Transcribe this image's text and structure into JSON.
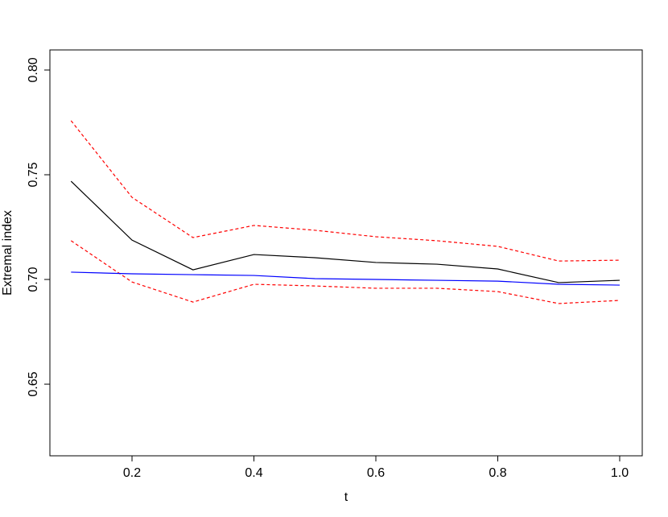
{
  "chart_data": {
    "type": "line",
    "x_label": "t",
    "y_label": "Extremal index",
    "x": [
      0.1,
      0.2,
      0.3,
      0.4,
      0.5,
      0.6,
      0.7,
      0.8,
      0.9,
      1.0
    ],
    "series": [
      {
        "color": "#000000",
        "dash": false,
        "values": [
          0.7469,
          0.7188,
          0.7046,
          0.7119,
          0.7104,
          0.7081,
          0.7073,
          0.705,
          0.6985,
          0.6996
        ]
      },
      {
        "color": "#ff0000",
        "dash": true,
        "values": [
          0.7758,
          0.7392,
          0.72,
          0.7258,
          0.7235,
          0.7204,
          0.7185,
          0.7158,
          0.7088,
          0.7092
        ]
      },
      {
        "color": "#ff0000",
        "dash": true,
        "values": [
          0.7185,
          0.6988,
          0.6892,
          0.6977,
          0.6969,
          0.6958,
          0.6958,
          0.6942,
          0.6885,
          0.69
        ]
      },
      {
        "color": "#0000ff",
        "dash": false,
        "values": [
          0.7035,
          0.7027,
          0.7023,
          0.7019,
          0.7004,
          0.7,
          0.6996,
          0.6992,
          0.6977,
          0.6973
        ]
      }
    ],
    "xlim": [
      0.0653,
      1.037
    ],
    "ylim": [
      0.6158,
      0.8096
    ],
    "xticks": [
      0.2,
      0.4,
      0.6,
      0.8,
      {
        "value": 1.0,
        "label": "1.0"
      }
    ],
    "yticks": [
      {
        "value": 0.65,
        "label": "0.65"
      },
      {
        "value": 0.7,
        "label": "0.70"
      },
      {
        "value": 0.75,
        "label": "0.75"
      },
      {
        "value": 0.8,
        "label": "0.80"
      }
    ],
    "grid": false
  }
}
